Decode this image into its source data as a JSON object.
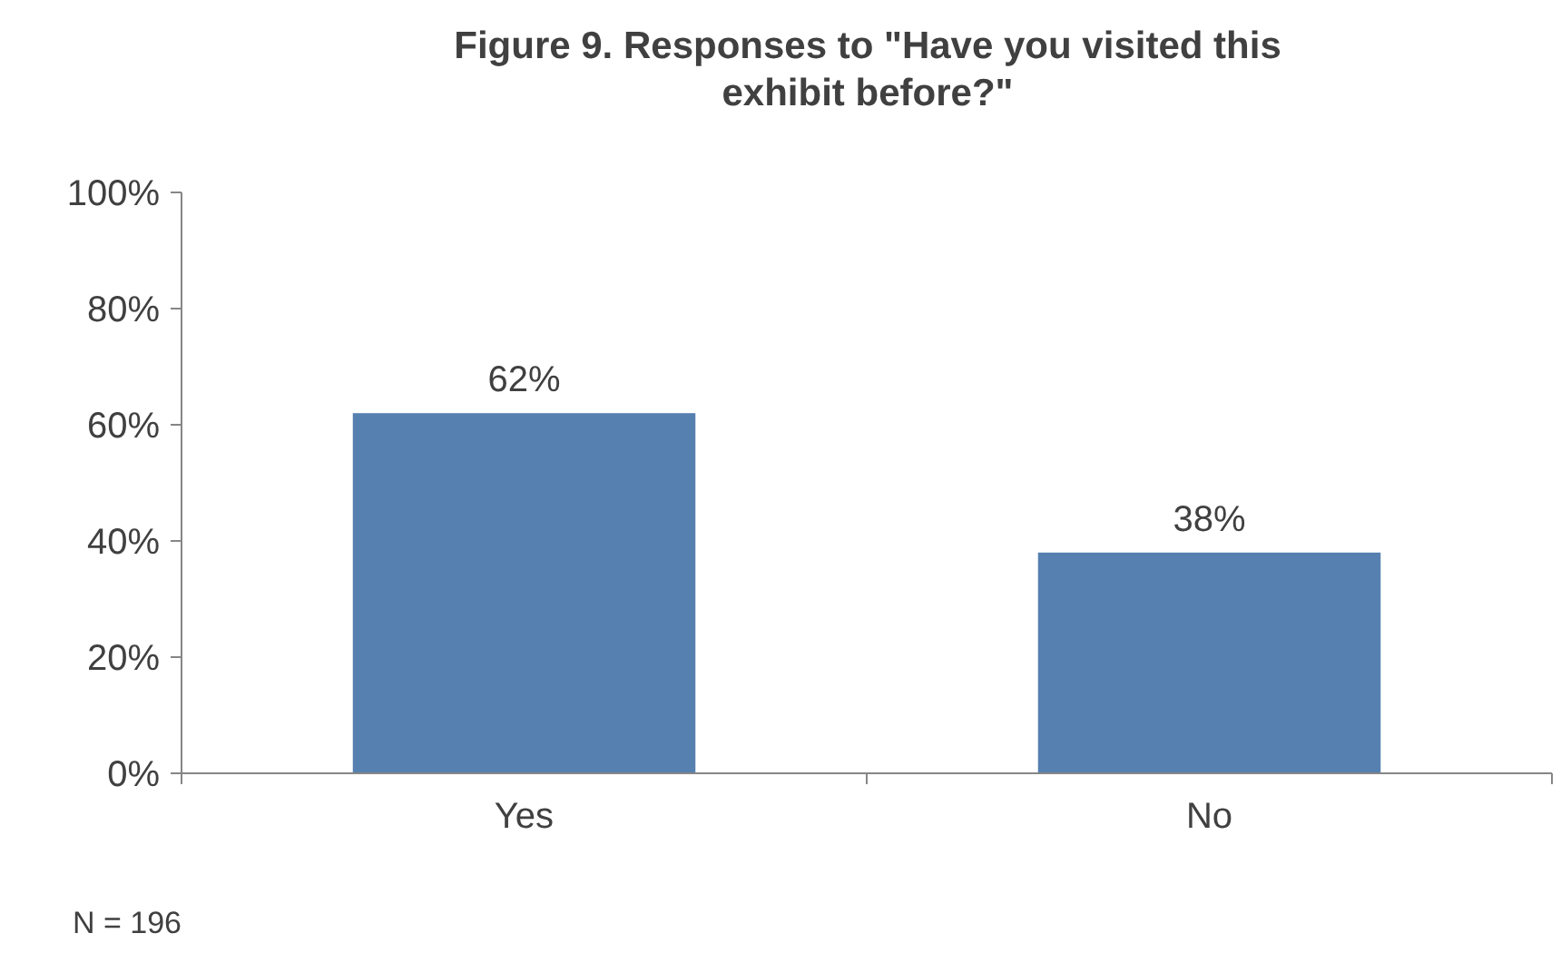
{
  "chart_data": {
    "type": "bar",
    "title": "Figure 9. Responses to \"Have you visited this exhibit before?\"",
    "categories": [
      "Yes",
      "No"
    ],
    "values": [
      62,
      38
    ],
    "color": "#5580b0",
    "value_labels": [
      "62%",
      "38%"
    ],
    "ylim": [
      0,
      100
    ],
    "yticks": [
      {
        "value": 0,
        "label": "0%"
      },
      {
        "value": 20,
        "label": "20%"
      },
      {
        "value": 40,
        "label": "40%"
      },
      {
        "value": 60,
        "label": "60%"
      },
      {
        "value": 80,
        "label": "80%"
      },
      {
        "value": 100,
        "label": "100%"
      }
    ],
    "annotations": [
      "N = 196"
    ]
  }
}
